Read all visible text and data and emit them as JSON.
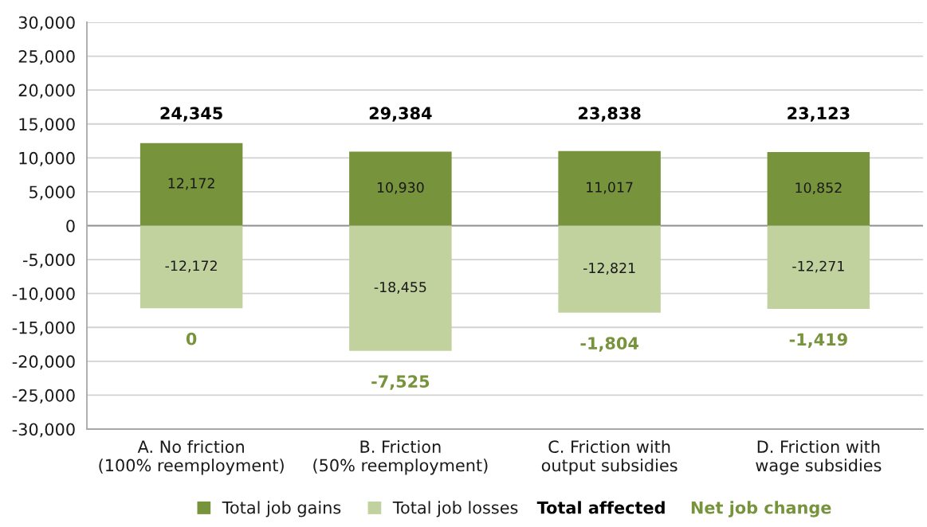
{
  "chart_data": {
    "type": "bar",
    "categories": [
      "A. No friction\n(100% reemployment)",
      "B. Friction\n(50% reemployment)",
      "C. Friction with\noutput subsidies",
      "D. Friction with\nwage subsidies"
    ],
    "series": [
      {
        "name": "Total job gains",
        "color": "#77933c",
        "values": [
          12172,
          10930,
          11017,
          10852
        ],
        "value_labels": [
          "12,172",
          "10,930",
          "11,017",
          "10,852"
        ]
      },
      {
        "name": "Total job losses",
        "color": "#c2d29f",
        "values": [
          -12172,
          -18455,
          -12821,
          -12271
        ],
        "value_labels": [
          "-12,172",
          "-18,455",
          "-12,821",
          "-12,271"
        ]
      }
    ],
    "stacked": true,
    "totals": [
      "0",
      "-7,525",
      "-1,804",
      "-1,419"
    ],
    "annotations": [
      "24,345",
      "29,384",
      "23,838",
      "23,123",
      "Total affected",
      "Net job change"
    ],
    "ylim": [
      -30000,
      30000
    ],
    "yticks": [
      {
        "value": -30000,
        "label": "-30,000"
      },
      {
        "value": -25000,
        "label": "-25,000"
      },
      {
        "value": -20000,
        "label": "-20,000"
      },
      {
        "value": -15000,
        "label": "-15,000"
      },
      {
        "value": -10000,
        "label": "-10,000"
      },
      {
        "value": -5000,
        "label": "-5,000"
      },
      0,
      {
        "value": 5000,
        "label": "5,000"
      },
      {
        "value": 10000,
        "label": "10,000"
      },
      {
        "value": 15000,
        "label": "15,000"
      },
      {
        "value": 20000,
        "label": "20,000"
      },
      {
        "value": 25000,
        "label": "25,000"
      },
      {
        "value": 30000,
        "label": "30,000"
      }
    ],
    "grid": "y",
    "legend": "bottom"
  }
}
